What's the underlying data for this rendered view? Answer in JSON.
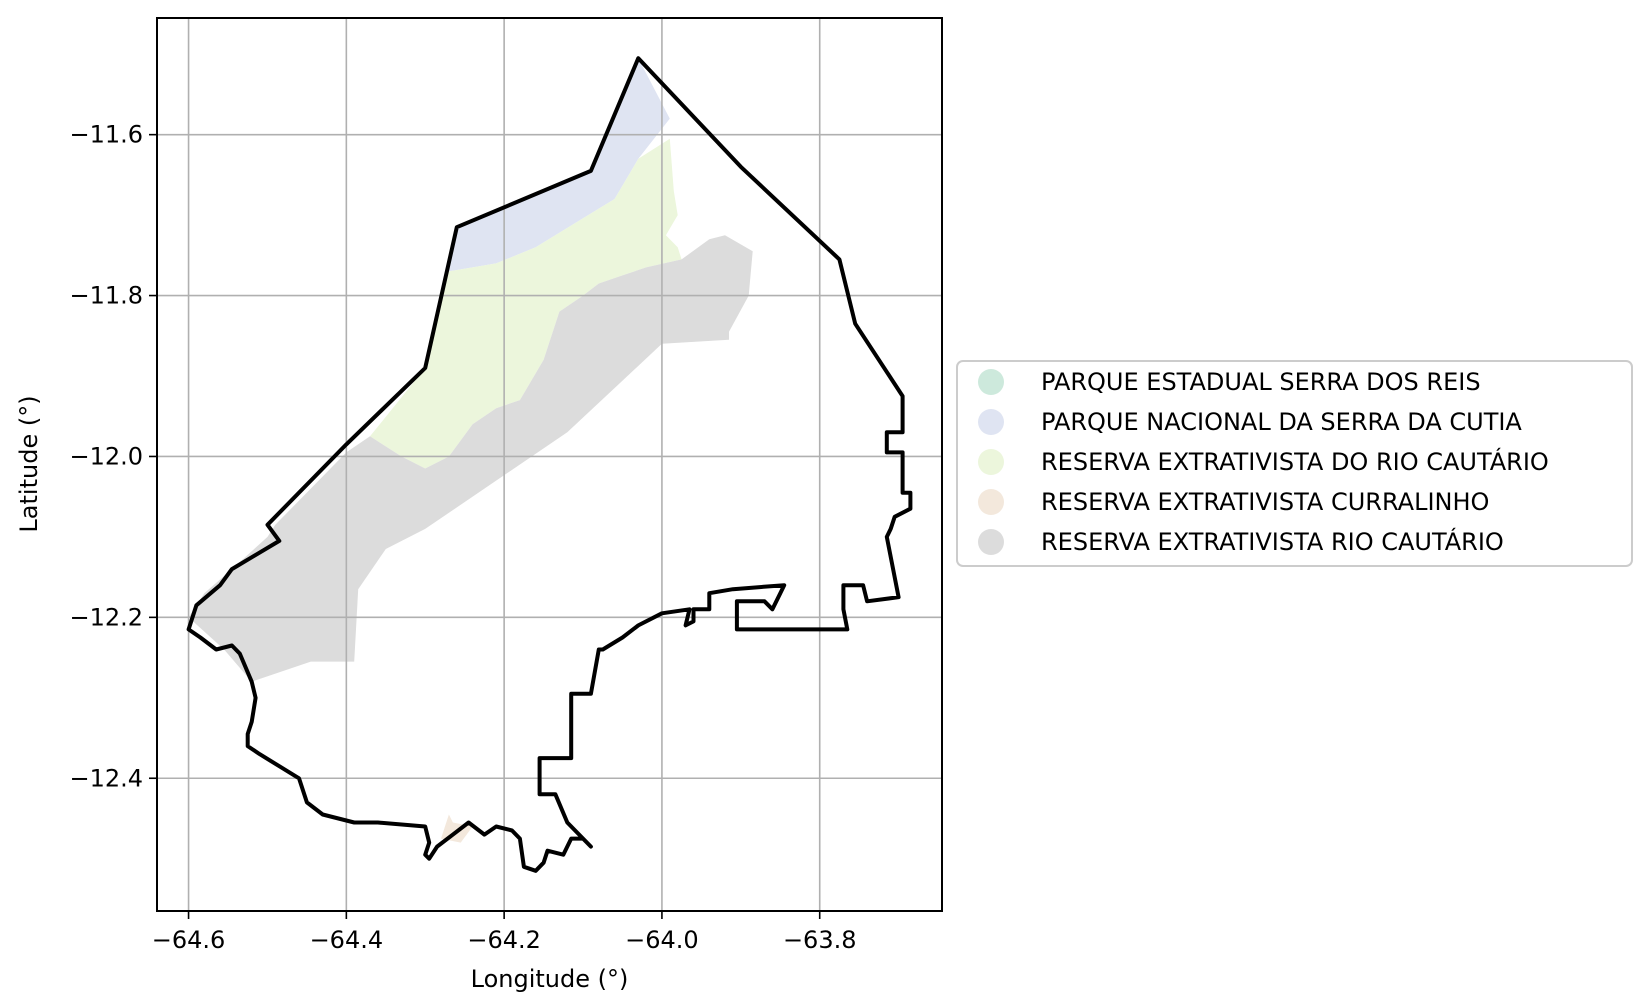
{
  "xaxis": {
    "label": "Longitude (°)",
    "ticks": [
      {
        "value": -64.6,
        "label": "−64.6"
      },
      {
        "value": -64.4,
        "label": "−64.4"
      },
      {
        "value": -64.2,
        "label": "−64.2"
      },
      {
        "value": -64.0,
        "label": "−64.0"
      },
      {
        "value": -63.8,
        "label": "−63.8"
      }
    ],
    "range": [
      -64.64,
      -63.645
    ]
  },
  "yaxis": {
    "label": "Latitude (°)",
    "ticks": [
      {
        "value": -11.6,
        "label": "−11.6"
      },
      {
        "value": -11.8,
        "label": "−11.8"
      },
      {
        "value": -12.0,
        "label": "−12.0"
      },
      {
        "value": -12.2,
        "label": "−12.2"
      },
      {
        "value": -12.4,
        "label": "−12.4"
      }
    ],
    "range": [
      -12.565,
      -11.455
    ]
  },
  "grid": true,
  "legend": {
    "placement": "right, outside plot",
    "items": [
      {
        "label": "PARQUE ESTADUAL SERRA DOS REIS",
        "color": "#cde9dc"
      },
      {
        "label": "PARQUE NACIONAL DA SERRA DA CUTIA",
        "color": "#dfe4f2"
      },
      {
        "label": "RESERVA EXTRATIVISTA  DO RIO CAUTÁRIO",
        "color": "#ecf6dc"
      },
      {
        "label": "RESERVA EXTRATIVISTA CURRALINHO",
        "color": "#f3e8dc"
      },
      {
        "label": "RESERVA EXTRATIVISTA RIO CAUTÁRIO",
        "color": "#dcdcdc"
      }
    ]
  },
  "boundary_color": "#000000",
  "regions": {
    "cutia": {
      "color": "#dfe4f2",
      "coords": [
        [
          -64.03,
          -11.505
        ],
        [
          -63.99,
          -11.58
        ],
        [
          -64.03,
          -11.63
        ],
        [
          -64.06,
          -11.68
        ],
        [
          -64.11,
          -11.71
        ],
        [
          -64.16,
          -11.74
        ],
        [
          -64.21,
          -11.76
        ],
        [
          -64.27,
          -11.77
        ],
        [
          -64.26,
          -11.715
        ],
        [
          -64.09,
          -11.645
        ]
      ]
    },
    "rio_cautario_do": {
      "color": "#ecf6dc",
      "coords": [
        [
          -64.06,
          -11.68
        ],
        [
          -64.03,
          -11.63
        ],
        [
          -63.99,
          -11.605
        ],
        [
          -63.985,
          -11.67
        ],
        [
          -63.98,
          -11.7
        ],
        [
          -63.995,
          -11.725
        ],
        [
          -63.98,
          -11.74
        ],
        [
          -63.975,
          -11.755
        ],
        [
          -64.02,
          -11.765
        ],
        [
          -64.05,
          -11.775
        ],
        [
          -64.08,
          -11.785
        ],
        [
          -64.1,
          -11.8
        ],
        [
          -64.13,
          -11.82
        ],
        [
          -64.15,
          -11.88
        ],
        [
          -64.18,
          -11.93
        ],
        [
          -64.21,
          -11.94
        ],
        [
          -64.24,
          -11.96
        ],
        [
          -64.27,
          -12.0
        ],
        [
          -64.3,
          -12.015
        ],
        [
          -64.33,
          -12.0
        ],
        [
          -64.37,
          -11.975
        ],
        [
          -64.3,
          -11.89
        ],
        [
          -64.27,
          -11.77
        ],
        [
          -64.21,
          -11.76
        ],
        [
          -64.16,
          -11.74
        ],
        [
          -64.11,
          -11.71
        ]
      ]
    },
    "rio_cautario": {
      "color": "#dcdcdc",
      "coords": [
        [
          -63.975,
          -11.755
        ],
        [
          -63.94,
          -11.73
        ],
        [
          -63.92,
          -11.725
        ],
        [
          -63.885,
          -11.745
        ],
        [
          -63.89,
          -11.8
        ],
        [
          -63.915,
          -11.845
        ],
        [
          -63.915,
          -11.855
        ],
        [
          -64.0,
          -11.86
        ],
        [
          -64.12,
          -11.97
        ],
        [
          -64.3,
          -12.09
        ],
        [
          -64.35,
          -12.115
        ],
        [
          -64.385,
          -12.165
        ],
        [
          -64.39,
          -12.255
        ],
        [
          -64.445,
          -12.255
        ],
        [
          -64.52,
          -12.28
        ],
        [
          -64.555,
          -12.24
        ],
        [
          -64.6,
          -12.2
        ],
        [
          -64.58,
          -12.17
        ],
        [
          -64.545,
          -12.14
        ],
        [
          -64.5,
          -12.1
        ],
        [
          -64.49,
          -12.085
        ],
        [
          -64.4,
          -11.995
        ],
        [
          -64.37,
          -11.975
        ],
        [
          -64.33,
          -12.0
        ],
        [
          -64.3,
          -12.015
        ],
        [
          -64.27,
          -12.0
        ],
        [
          -64.24,
          -11.96
        ],
        [
          -64.21,
          -11.94
        ],
        [
          -64.18,
          -11.93
        ],
        [
          -64.15,
          -11.88
        ],
        [
          -64.13,
          -11.82
        ],
        [
          -64.1,
          -11.8
        ],
        [
          -64.08,
          -11.785
        ],
        [
          -64.05,
          -11.775
        ],
        [
          -64.02,
          -11.765
        ]
      ]
    },
    "curralinho": {
      "color": "#f3e8dc",
      "coords": [
        [
          -64.27,
          -12.445
        ],
        [
          -64.265,
          -12.455
        ],
        [
          -64.24,
          -12.46
        ],
        [
          -64.255,
          -12.48
        ],
        [
          -64.28,
          -12.475
        ]
      ]
    }
  },
  "boundary_coords": [
    [
      -64.03,
      -11.505
    ],
    [
      -63.9,
      -11.64
    ],
    [
      -63.775,
      -11.755
    ],
    [
      -63.755,
      -11.835
    ],
    [
      -63.695,
      -11.925
    ],
    [
      -63.695,
      -11.97
    ],
    [
      -63.715,
      -11.97
    ],
    [
      -63.715,
      -11.995
    ],
    [
      -63.695,
      -11.995
    ],
    [
      -63.695,
      -12.045
    ],
    [
      -63.685,
      -12.045
    ],
    [
      -63.685,
      -12.065
    ],
    [
      -63.705,
      -12.075
    ],
    [
      -63.71,
      -12.09
    ],
    [
      -63.715,
      -12.1
    ],
    [
      -63.7,
      -12.175
    ],
    [
      -63.74,
      -12.18
    ],
    [
      -63.745,
      -12.16
    ],
    [
      -63.77,
      -12.16
    ],
    [
      -63.77,
      -12.19
    ],
    [
      -63.765,
      -12.215
    ],
    [
      -63.905,
      -12.215
    ],
    [
      -63.905,
      -12.18
    ],
    [
      -63.87,
      -12.18
    ],
    [
      -63.86,
      -12.19
    ],
    [
      -63.85,
      -12.17
    ],
    [
      -63.845,
      -12.16
    ],
    [
      -63.91,
      -12.165
    ],
    [
      -63.94,
      -12.17
    ],
    [
      -63.94,
      -12.19
    ],
    [
      -63.96,
      -12.19
    ],
    [
      -63.96,
      -12.205
    ],
    [
      -63.97,
      -12.21
    ],
    [
      -63.965,
      -12.19
    ],
    [
      -64.0,
      -12.195
    ],
    [
      -64.03,
      -12.21
    ],
    [
      -64.05,
      -12.225
    ],
    [
      -64.075,
      -12.24
    ],
    [
      -64.08,
      -12.24
    ],
    [
      -64.09,
      -12.295
    ],
    [
      -64.115,
      -12.295
    ],
    [
      -64.115,
      -12.375
    ],
    [
      -64.155,
      -12.375
    ],
    [
      -64.155,
      -12.42
    ],
    [
      -64.135,
      -12.42
    ],
    [
      -64.12,
      -12.455
    ],
    [
      -64.09,
      -12.485
    ],
    [
      -64.1,
      -12.475
    ],
    [
      -64.115,
      -12.475
    ],
    [
      -64.125,
      -12.495
    ],
    [
      -64.145,
      -12.49
    ],
    [
      -64.15,
      -12.505
    ],
    [
      -64.16,
      -12.515
    ],
    [
      -64.175,
      -12.51
    ],
    [
      -64.18,
      -12.475
    ],
    [
      -64.19,
      -12.465
    ],
    [
      -64.21,
      -12.46
    ],
    [
      -64.225,
      -12.47
    ],
    [
      -64.245,
      -12.455
    ],
    [
      -64.265,
      -12.47
    ],
    [
      -64.285,
      -12.485
    ],
    [
      -64.295,
      -12.5
    ],
    [
      -64.3,
      -12.495
    ],
    [
      -64.295,
      -12.48
    ],
    [
      -64.3,
      -12.46
    ],
    [
      -64.36,
      -12.455
    ],
    [
      -64.39,
      -12.455
    ],
    [
      -64.43,
      -12.445
    ],
    [
      -64.45,
      -12.43
    ],
    [
      -64.46,
      -12.4
    ],
    [
      -64.485,
      -12.385
    ],
    [
      -64.51,
      -12.37
    ],
    [
      -64.525,
      -12.36
    ],
    [
      -64.525,
      -12.345
    ],
    [
      -64.52,
      -12.33
    ],
    [
      -64.515,
      -12.3
    ],
    [
      -64.52,
      -12.28
    ],
    [
      -64.535,
      -12.245
    ],
    [
      -64.545,
      -12.235
    ],
    [
      -64.565,
      -12.24
    ],
    [
      -64.585,
      -12.225
    ],
    [
      -64.6,
      -12.215
    ],
    [
      -64.59,
      -12.185
    ],
    [
      -64.56,
      -12.16
    ],
    [
      -64.545,
      -12.14
    ],
    [
      -64.485,
      -12.105
    ],
    [
      -64.5,
      -12.085
    ],
    [
      -64.4,
      -11.985
    ],
    [
      -64.3,
      -11.89
    ],
    [
      -64.26,
      -11.715
    ],
    [
      -64.09,
      -11.645
    ]
  ]
}
